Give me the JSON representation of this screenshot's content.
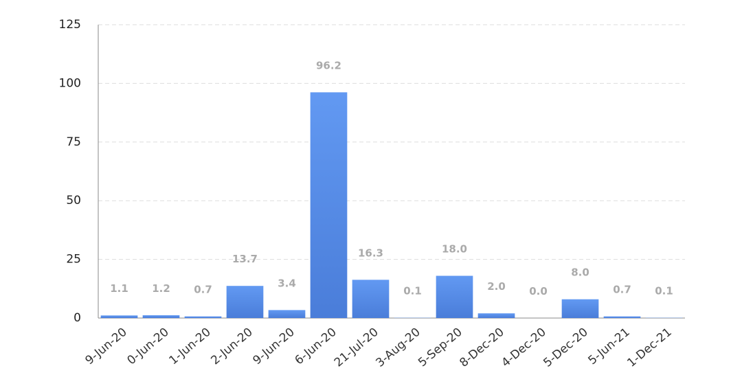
{
  "chart_data": {
    "type": "bar",
    "categories": [
      "9-Jun-20",
      "0-Jun-20",
      "1-Jun-20",
      "2-Jun-20",
      "9-Jun-20",
      "6-Jun-20",
      "21-Jul-20",
      "3-Aug-20",
      "5-Sep-20",
      "8-Dec-20",
      "4-Dec-20",
      "5-Dec-20",
      "5-Jun-21",
      "1-Dec-21"
    ],
    "values": [
      1.1,
      1.2,
      0.7,
      13.7,
      3.4,
      96.2,
      16.3,
      0.1,
      18.0,
      2.0,
      0.0,
      8.0,
      0.7,
      0.1
    ],
    "value_labels": [
      "1.1",
      "1.2",
      "0.7",
      "13.7",
      "3.4",
      "96.2",
      "16.3",
      "0.1",
      "18.0",
      "2.0",
      "0.0",
      "8.0",
      "0.7",
      "0.1"
    ],
    "color": "#5a8fec",
    "ylim": [
      0,
      125
    ],
    "yticks": [
      0,
      25,
      50,
      75,
      100,
      125
    ],
    "grid": true
  }
}
